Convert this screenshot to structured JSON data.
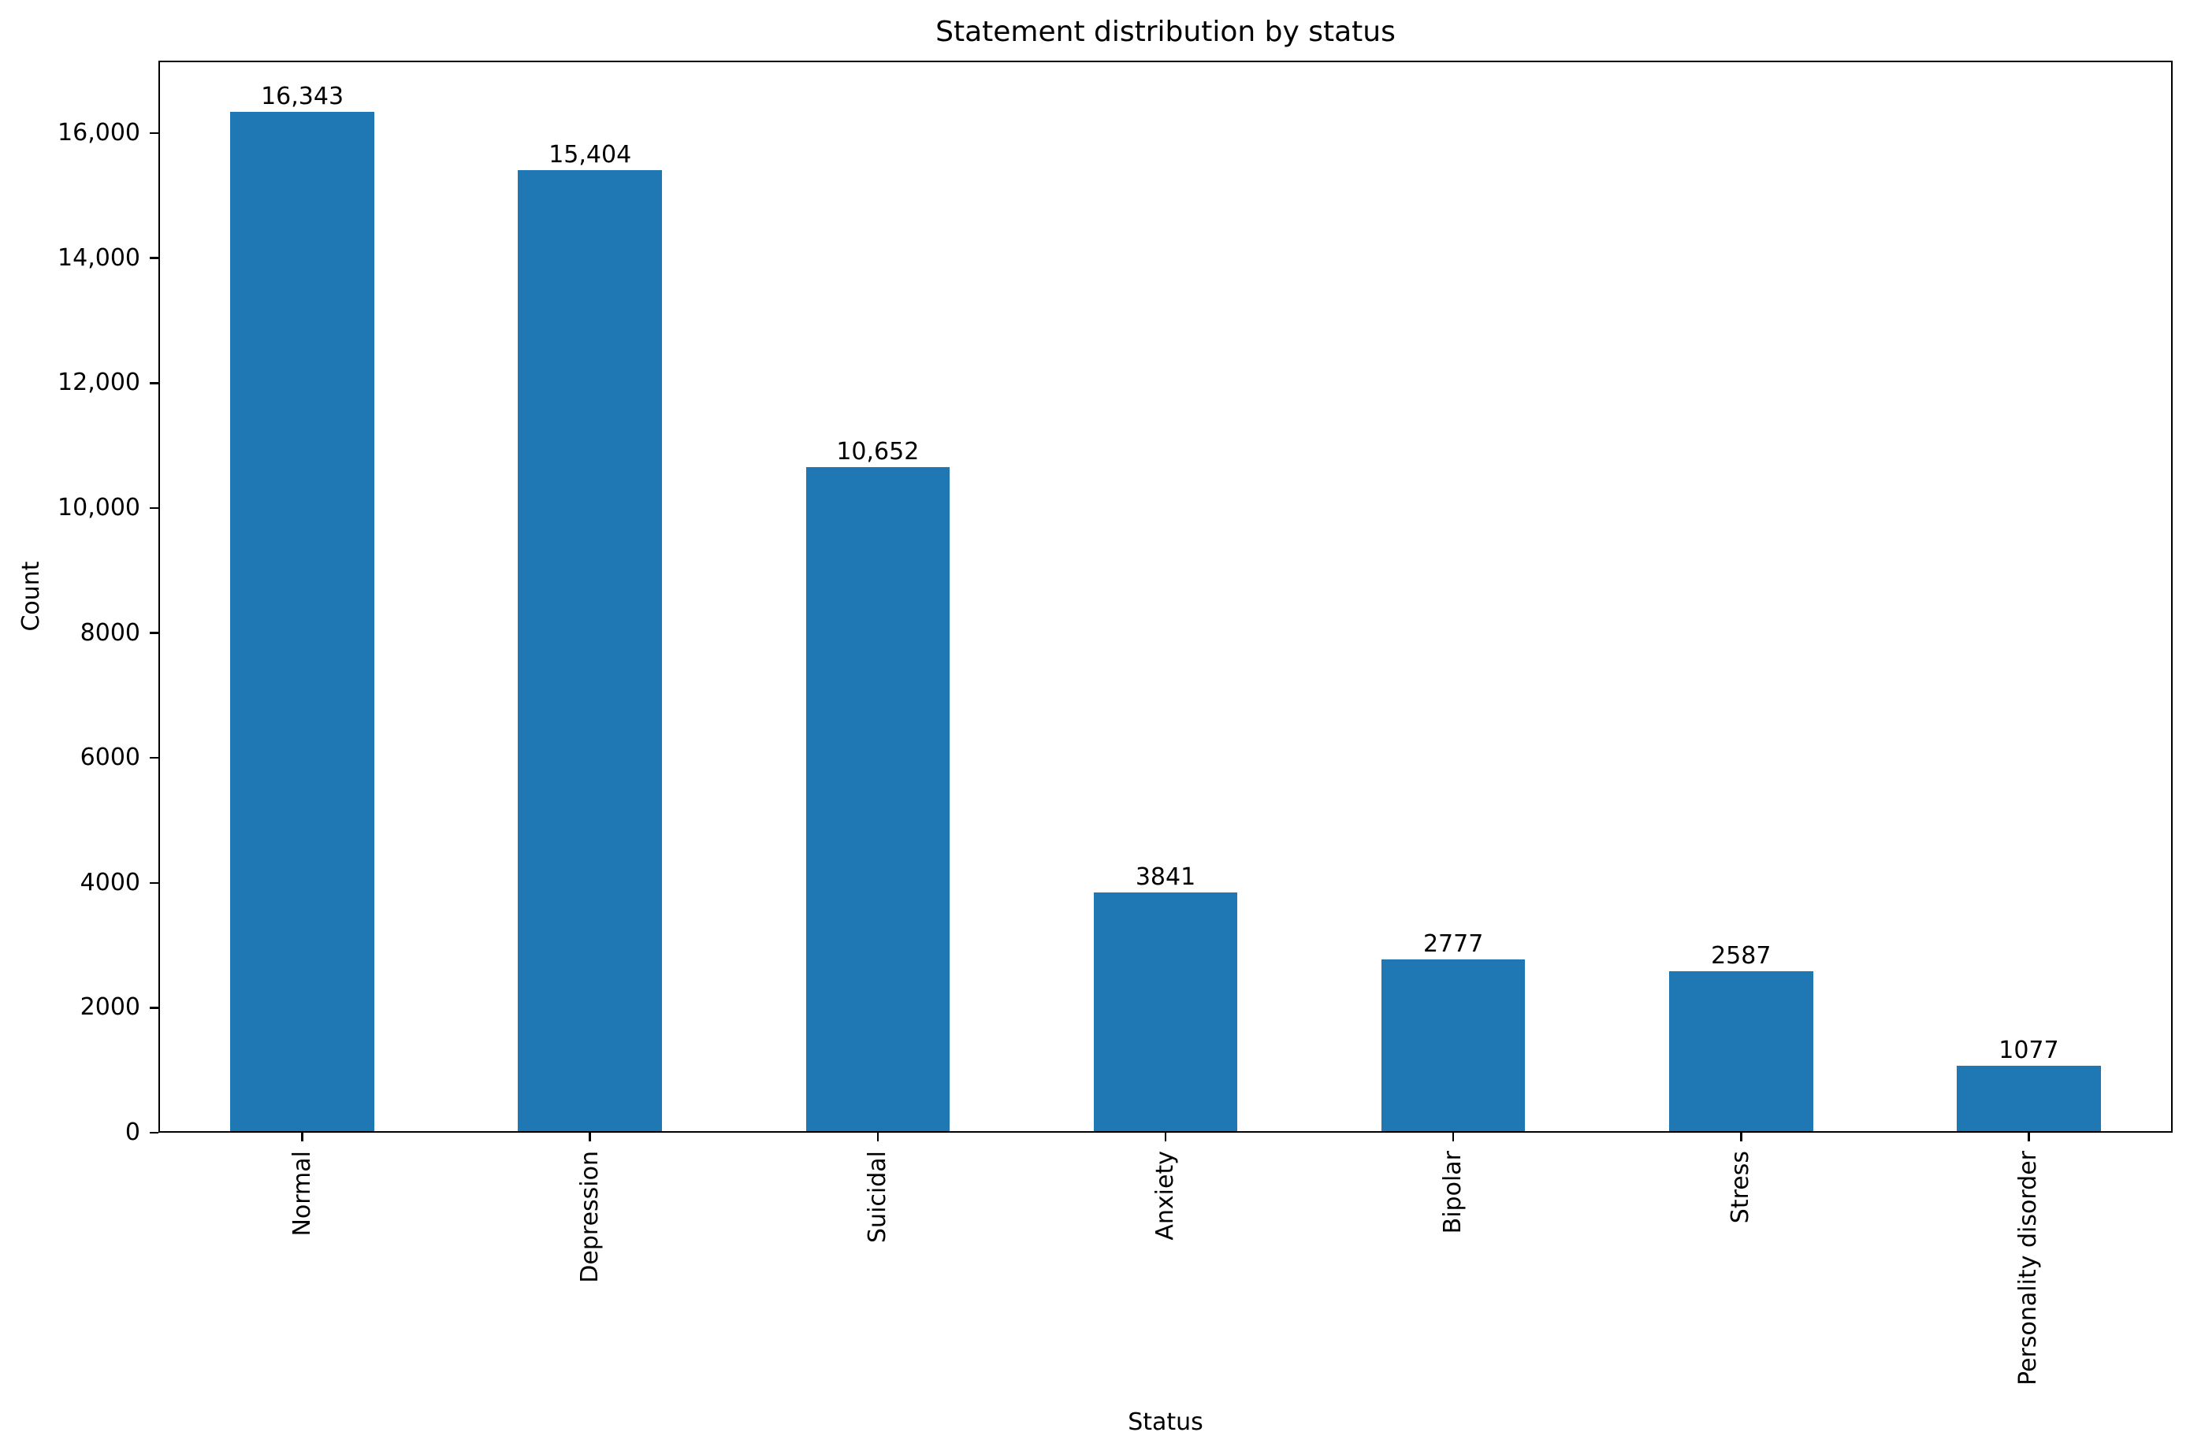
{
  "chart_data": {
    "type": "bar",
    "title": "Statement distribution by status",
    "xlabel": "Status",
    "ylabel": "Count",
    "categories": [
      "Normal",
      "Depression",
      "Suicidal",
      "Anxiety",
      "Bipolar",
      "Stress",
      "Personality disorder"
    ],
    "values": [
      16343,
      15404,
      10652,
      3841,
      2777,
      2587,
      1077
    ],
    "value_labels": [
      "16,343",
      "15,404",
      "10,652",
      "3841",
      "2777",
      "2587",
      "1077"
    ],
    "yticks": [
      0,
      2000,
      4000,
      6000,
      8000,
      10000,
      12000,
      14000,
      16000
    ],
    "ytick_labels": [
      "0",
      "2000",
      "4000",
      "6000",
      "8000",
      "10,000",
      "12,000",
      "14,000",
      "16,000"
    ],
    "ylim": [
      0,
      17160
    ],
    "bar_color": "#1f77b4",
    "text_color": "#000000",
    "spine_color": "#000000",
    "background_color": "#ffffff",
    "grid": false,
    "legend": null,
    "bar_width_fraction": 0.5,
    "x_tick_rotation_degrees": 90
  }
}
